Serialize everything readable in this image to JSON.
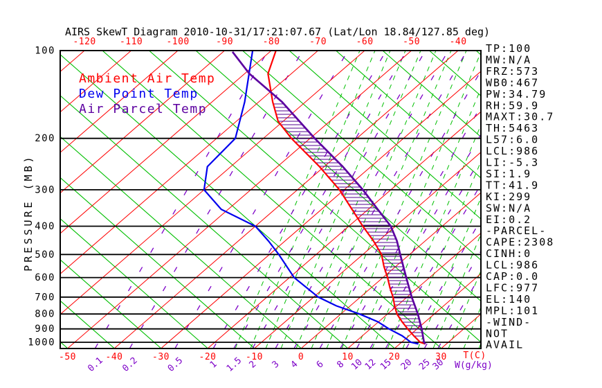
{
  "title": "AIRS SkewT Diagram 2010-10-31/17:21:07.67 (Lat/Lon 18.84/127.85 deg)",
  "colors": {
    "ambient": "#ff0000",
    "dew_point": "#0000ee",
    "parcel": "#5c00a0",
    "isotherm": "#ff0000",
    "adiabat_green": "#00bf00",
    "mixing_purple": "#7d00c8",
    "grid_black": "#000000",
    "hatch": "#52008f"
  },
  "legend": {
    "items": [
      {
        "label": "Ambient Air Temp",
        "color": "#ff0000"
      },
      {
        "label": "Dew Point Temp",
        "color": "#0000ee"
      },
      {
        "label": "Air Parcel Temp",
        "color": "#5c00a0"
      }
    ]
  },
  "axes": {
    "pressure_axis_title": "PRESSURE (MB)",
    "pressure_ticks": [
      100,
      200,
      300,
      400,
      500,
      600,
      700,
      800,
      900,
      1000
    ],
    "top_temp_ticks": [
      -120,
      -110,
      -100,
      -90,
      -80,
      -70,
      -60,
      -50,
      -40
    ],
    "bottom_temp_ticks": [
      -50,
      -40,
      -30,
      -20,
      -10,
      0,
      10,
      20,
      30
    ],
    "temp_unit_label": "T(C)",
    "mixing_ratio_ticks": [
      0.1,
      0.2,
      0.5,
      1,
      1.5,
      2,
      3,
      4,
      6,
      8,
      10,
      12,
      15,
      20,
      25,
      30
    ],
    "mixing_ratio_unit_label": "W(g/kg)"
  },
  "stats_panel": {
    "items": [
      "TP:100",
      "MW:N/A",
      "FRZ:573",
      "WB0:467",
      "PW:34.79",
      "RH:59.9",
      "MAXT:30.7",
      "TH:5463",
      "L57:6.0",
      "LCL:986",
      "LI:-5.3",
      "SI:1.9",
      "TT:41.9",
      "KI:299",
      "SW:N/A",
      "EI:0.2",
      "-PARCEL-",
      "CAPE:2308",
      "CINH:0",
      "LCL:986",
      "CAP:0.0",
      "LFC:977",
      "EL:140",
      "MPL:101",
      "-WIND-",
      "NOT",
      "AVAIL"
    ]
  },
  "chart_data": {
    "type": "line",
    "title": "AIRS SkewT Diagram 2010-10-31/17:21:07.67 (Lat/Lon 18.84/127.85 deg)",
    "xlabel": "T(C)",
    "ylabel": "PRESSURE (MB)",
    "x_bottom_range": [
      -50,
      30
    ],
    "x_top_range": [
      -120,
      -40
    ],
    "pressure_range": [
      100,
      1050
    ],
    "pressure_scale": "log",
    "skew_note": "isotherms slant up-right; values are (pressure mb, temperature C)",
    "legend_position": "top-left inside plot",
    "grid": true,
    "series": [
      {
        "name": "Ambient Air Temp",
        "color": "#ff0000",
        "points_p_t": [
          [
            100,
            -79
          ],
          [
            120,
            -75
          ],
          [
            150,
            -67
          ],
          [
            175,
            -61
          ],
          [
            200,
            -54
          ],
          [
            250,
            -41
          ],
          [
            300,
            -31
          ],
          [
            350,
            -23.5
          ],
          [
            400,
            -17
          ],
          [
            450,
            -11
          ],
          [
            500,
            -6
          ],
          [
            550,
            -2.5
          ],
          [
            600,
            1
          ],
          [
            650,
            4
          ],
          [
            700,
            7
          ],
          [
            750,
            9.5
          ],
          [
            800,
            12
          ],
          [
            850,
            15
          ],
          [
            900,
            18
          ],
          [
            950,
            21
          ],
          [
            1000,
            24
          ],
          [
            1013,
            25.5
          ]
        ]
      },
      {
        "name": "Dew Point Temp",
        "color": "#0000ee",
        "points_p_t": [
          [
            100,
            -84
          ],
          [
            150,
            -73
          ],
          [
            200,
            -66
          ],
          [
            250,
            -65
          ],
          [
            300,
            -60
          ],
          [
            350,
            -51.5
          ],
          [
            400,
            -40
          ],
          [
            450,
            -33.5
          ],
          [
            500,
            -28
          ],
          [
            600,
            -19
          ],
          [
            700,
            -9
          ],
          [
            750,
            -3
          ],
          [
            800,
            4
          ],
          [
            850,
            9.8
          ],
          [
            900,
            14
          ],
          [
            950,
            18.5
          ],
          [
            1000,
            22
          ],
          [
            1013,
            24
          ]
        ]
      },
      {
        "name": "Air Parcel Temp",
        "color": "#5c00a0",
        "points_p_t": [
          [
            101,
            -88
          ],
          [
            120,
            -79
          ],
          [
            150,
            -65
          ],
          [
            200,
            -49
          ],
          [
            250,
            -36
          ],
          [
            300,
            -26
          ],
          [
            350,
            -18
          ],
          [
            400,
            -11
          ],
          [
            450,
            -6
          ],
          [
            500,
            -2
          ],
          [
            600,
            5
          ],
          [
            700,
            11
          ],
          [
            800,
            16.5
          ],
          [
            900,
            21
          ],
          [
            1000,
            24.8
          ],
          [
            1013,
            25.5
          ]
        ]
      }
    ],
    "hatched_region": "horizontal hatching between Ambient Air Temp and Air Parcel Temp curves from EL (~140 mb) to LFC (~977 mb), CAPE=2308"
  }
}
